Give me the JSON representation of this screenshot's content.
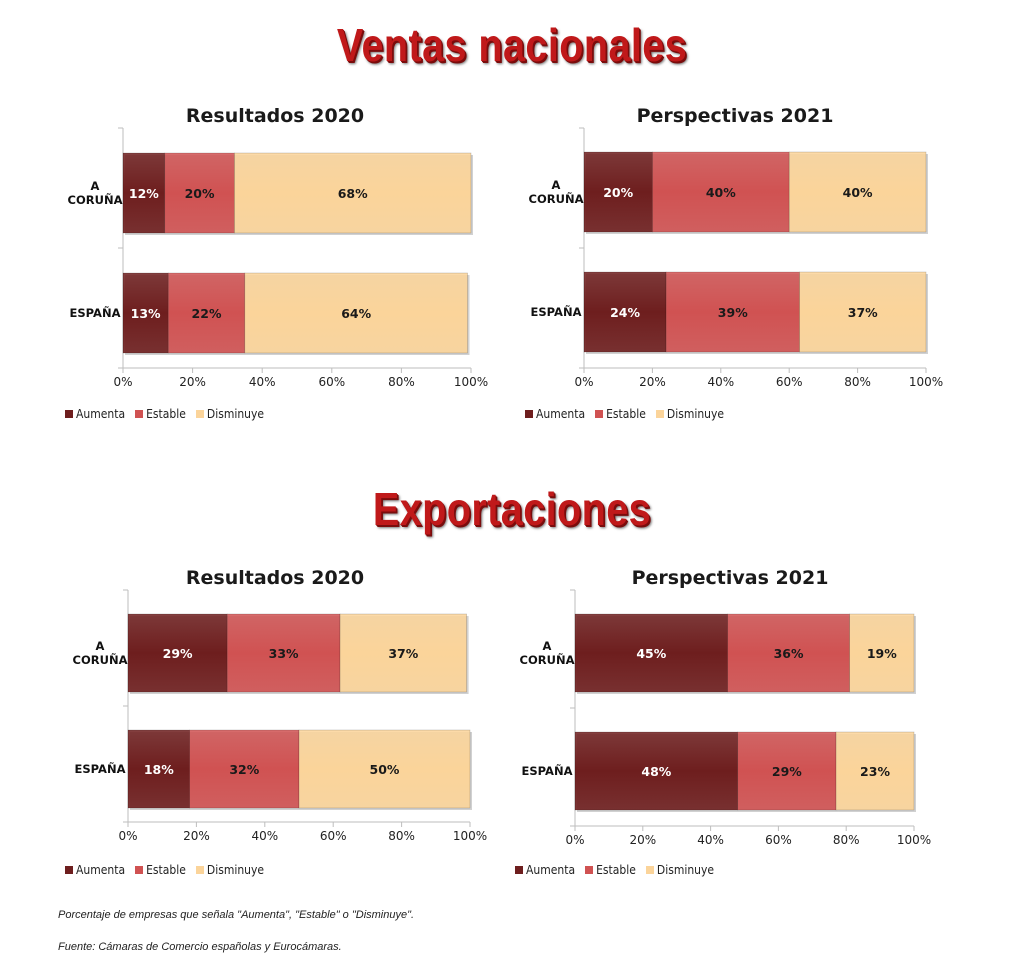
{
  "sections": {
    "ventas_title": "Ventas nacionales",
    "export_title": "Exportaciones"
  },
  "colors": {
    "aumenta": "#6e1e1e",
    "estable": "#d05252",
    "disminuye": "#fbd49a"
  },
  "legend": [
    "Aumenta",
    "Estable",
    "Disminuye"
  ],
  "notes": {
    "definition": "Porcentaje de empresas que señala  \"Aumenta\", \"Estable\" o \"Disminuye\".",
    "source": "Fuente: Cámaras de Comercio españolas y Eurocámaras."
  },
  "chart_data": [
    {
      "type": "bar",
      "orientation": "horizontal",
      "stacked": "percent",
      "section": "Ventas nacionales",
      "title": "Resultados 2020",
      "categories": [
        "A\nCORUÑA",
        "ESPAÑA"
      ],
      "series": [
        {
          "name": "Aumenta",
          "values": [
            12,
            13
          ],
          "labels": [
            "12%",
            "13%"
          ]
        },
        {
          "name": "Estable",
          "values": [
            20,
            22
          ],
          "labels": [
            "20%",
            "22%"
          ]
        },
        {
          "name": "Disminuye",
          "values": [
            68,
            64
          ],
          "labels": [
            "68%",
            "64%"
          ]
        }
      ],
      "xticks": [
        "0%",
        "20%",
        "40%",
        "60%",
        "80%",
        "100%"
      ],
      "xlim": [
        0,
        100
      ],
      "legend": "bottom-left"
    },
    {
      "type": "bar",
      "orientation": "horizontal",
      "stacked": "percent",
      "section": "Ventas nacionales",
      "title": "Perspectivas 2021",
      "categories": [
        "A\nCORUÑA",
        "ESPAÑA"
      ],
      "series": [
        {
          "name": "Aumenta",
          "values": [
            20,
            24
          ],
          "labels": [
            "20%",
            "24%"
          ]
        },
        {
          "name": "Estable",
          "values": [
            40,
            39
          ],
          "labels": [
            "40%",
            "39%"
          ]
        },
        {
          "name": "Disminuye",
          "values": [
            40,
            37
          ],
          "labels": [
            "40%",
            "37%"
          ]
        }
      ],
      "xticks": [
        "0%",
        "20%",
        "40%",
        "60%",
        "80%",
        "100%"
      ],
      "xlim": [
        0,
        100
      ],
      "legend": "bottom-left"
    },
    {
      "type": "bar",
      "orientation": "horizontal",
      "stacked": "percent",
      "section": "Exportaciones",
      "title": "Resultados 2020",
      "categories": [
        "A\nCORUÑA",
        "ESPAÑA"
      ],
      "series": [
        {
          "name": "Aumenta",
          "values": [
            29,
            18
          ],
          "labels": [
            "29%",
            "18%"
          ]
        },
        {
          "name": "Estable",
          "values": [
            33,
            32
          ],
          "labels": [
            "33%",
            "32%"
          ]
        },
        {
          "name": "Disminuye",
          "values": [
            37,
            50
          ],
          "labels": [
            "37%",
            "50%"
          ]
        }
      ],
      "xticks": [
        "0%",
        "20%",
        "40%",
        "60%",
        "80%",
        "100%"
      ],
      "xlim": [
        0,
        100
      ],
      "legend": "bottom-left"
    },
    {
      "type": "bar",
      "orientation": "horizontal",
      "stacked": "percent",
      "section": "Exportaciones",
      "title": "Perspectivas 2021",
      "categories": [
        "A\nCORUÑA",
        "ESPAÑA"
      ],
      "series": [
        {
          "name": "Aumenta",
          "values": [
            45,
            48
          ],
          "labels": [
            "45%",
            "48%"
          ]
        },
        {
          "name": "Estable",
          "values": [
            36,
            29
          ],
          "labels": [
            "36%",
            "29%"
          ]
        },
        {
          "name": "Disminuye",
          "values": [
            19,
            23
          ],
          "labels": [
            "19%",
            "23%"
          ]
        }
      ],
      "xticks": [
        "0%",
        "20%",
        "40%",
        "60%",
        "80%",
        "100%"
      ],
      "xlim": [
        0,
        100
      ],
      "legend": "bottom-left"
    }
  ]
}
